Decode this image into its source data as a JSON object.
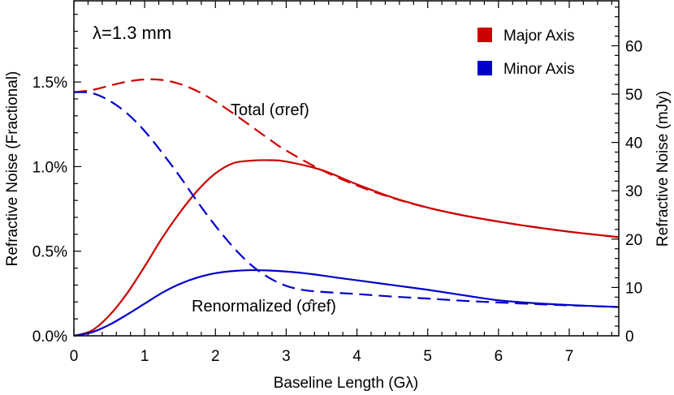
{
  "chart_data": {
    "type": "line",
    "title": "",
    "xlabel": "Baseline Length (Gλ)",
    "ylabel_left": "Refractive Noise (Fractional)",
    "ylabel_right": "Refractive Noise (mJy)",
    "xlim": [
      0,
      7.7
    ],
    "ylim_left": [
      0,
      0.0198
    ],
    "ylim_right": [
      0,
      69.3
    ],
    "x_ticks": [
      "0",
      "1",
      "2",
      "3",
      "4",
      "5",
      "6",
      "7"
    ],
    "y_ticks_left": [
      "0.0%",
      "0.5%",
      "1.0%",
      "1.5%"
    ],
    "y_ticks_right": [
      "0",
      "10",
      "20",
      "30",
      "40",
      "50",
      "60"
    ],
    "wavelength_label": "λ=1.3 mm",
    "annotations": {
      "total": "Total (σref)",
      "renormalized": "Renormalized (σ̂ref)"
    },
    "legend": {
      "placement": "top-right",
      "entries": [
        {
          "label": "Major Axis",
          "color": "#cc0000"
        },
        {
          "label": "Minor Axis",
          "color": "#0000cc"
        }
      ]
    },
    "series": [
      {
        "name": "Major Axis",
        "kind": "total",
        "style": "dashed",
        "color": "#cc0000",
        "x": [
          0,
          0.25,
          0.5,
          0.75,
          1.0,
          1.25,
          1.5,
          1.75,
          2.0,
          2.25,
          2.5,
          2.75,
          3.0,
          3.5,
          4.0,
          4.5,
          5.0,
          5.5,
          6.0,
          6.5,
          7.0,
          7.7
        ],
        "y": [
          0.0144,
          0.01452,
          0.01478,
          0.01502,
          0.01515,
          0.01512,
          0.01488,
          0.01445,
          0.01385,
          0.01315,
          0.0124,
          0.01165,
          0.01095,
          0.0098,
          0.00888,
          0.00815,
          0.00757,
          0.00712,
          0.00675,
          0.00643,
          0.00615,
          0.00583
        ]
      },
      {
        "name": "Major Axis",
        "kind": "renormalized",
        "style": "solid",
        "color": "#cc0000",
        "x": [
          0,
          0.25,
          0.5,
          0.75,
          1.0,
          1.25,
          1.5,
          1.75,
          2.0,
          2.25,
          2.5,
          2.75,
          3.0,
          3.5,
          4.0,
          4.5,
          5.0,
          5.5,
          6.0,
          6.5,
          7.0,
          7.7
        ],
        "y": [
          0.0,
          0.0003,
          0.0012,
          0.0025,
          0.0041,
          0.0058,
          0.0073,
          0.0086,
          0.0096,
          0.0102,
          0.01035,
          0.01038,
          0.0103,
          0.0098,
          0.00895,
          0.00818,
          0.00758,
          0.00712,
          0.00675,
          0.00643,
          0.00615,
          0.00583
        ]
      },
      {
        "name": "Minor Axis",
        "kind": "total",
        "style": "dashed",
        "color": "#0000cc",
        "x": [
          0,
          0.25,
          0.5,
          0.75,
          1.0,
          1.25,
          1.5,
          1.75,
          2.0,
          2.25,
          2.5,
          2.75,
          3.0,
          3.25,
          3.5,
          3.75,
          4.0,
          4.5,
          5.0,
          5.5,
          6.0,
          6.5,
          7.0,
          7.7
        ],
        "y": [
          0.0144,
          0.01435,
          0.0139,
          0.01315,
          0.0121,
          0.0108,
          0.0094,
          0.0079,
          0.0065,
          0.00525,
          0.0042,
          0.00345,
          0.00295,
          0.0027,
          0.0026,
          0.00253,
          0.00247,
          0.00232,
          0.0022,
          0.00207,
          0.00197,
          0.00188,
          0.0018,
          0.0017
        ]
      },
      {
        "name": "Minor Axis",
        "kind": "renormalized",
        "style": "solid",
        "color": "#0000cc",
        "x": [
          0,
          0.25,
          0.5,
          0.75,
          1.0,
          1.25,
          1.5,
          1.75,
          2.0,
          2.25,
          2.5,
          2.75,
          3.0,
          3.25,
          3.5,
          3.75,
          4.0,
          4.5,
          5.0,
          5.5,
          6.0,
          6.5,
          7.0,
          7.7
        ],
        "y": [
          0.0,
          0.0002,
          0.00065,
          0.00125,
          0.0019,
          0.00255,
          0.00307,
          0.00345,
          0.0037,
          0.00383,
          0.00388,
          0.00386,
          0.0038,
          0.0037,
          0.00357,
          0.00342,
          0.00328,
          0.003,
          0.00272,
          0.0024,
          0.0021,
          0.00193,
          0.00182,
          0.0017
        ]
      }
    ]
  }
}
